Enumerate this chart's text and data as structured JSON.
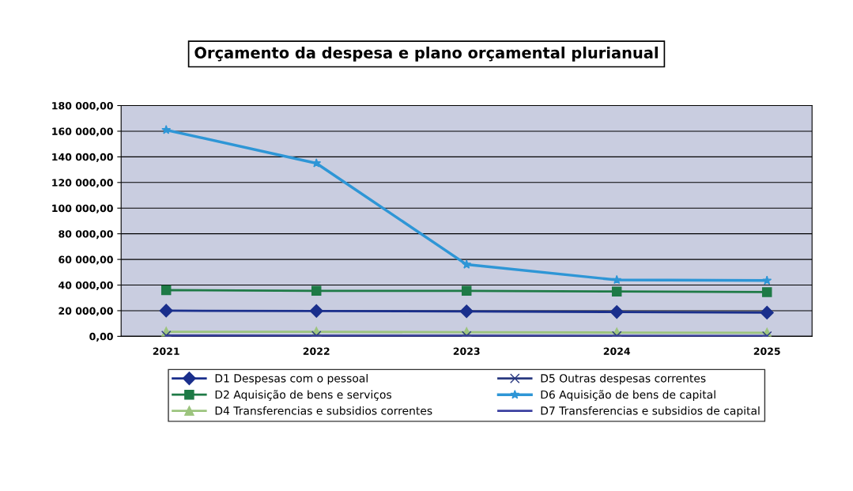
{
  "chart_data": {
    "type": "line",
    "title": "Orçamento da despesa e plano orçamental plurianual",
    "categories": [
      "2021",
      "2022",
      "2023",
      "2024",
      "2025"
    ],
    "series": [
      {
        "name": "D1 Despesas com o pessoal",
        "color": "#1a2f8c",
        "marker": "diamond",
        "values": [
          20000,
          19800,
          19500,
          19000,
          18500
        ]
      },
      {
        "name": "D2 Aquisição de bens e serviços",
        "color": "#1e7a46",
        "marker": "square",
        "values": [
          36000,
          35500,
          35500,
          35000,
          34500
        ]
      },
      {
        "name": "D4 Transferencias e subsidios correntes",
        "color": "#9cc47e",
        "marker": "triangle",
        "values": [
          3500,
          3500,
          3200,
          3000,
          2800
        ]
      },
      {
        "name": "D5 Outras despesas correntes",
        "color": "#2a3a80",
        "marker": "cross",
        "values": [
          600,
          500,
          400,
          300,
          200
        ]
      },
      {
        "name": "D6 Aquisição de bens de capital",
        "color": "#2e96d6",
        "marker": "star",
        "values": [
          161000,
          135000,
          56000,
          44000,
          43500
        ]
      },
      {
        "name": "D7 Transferencias e subsidios de capital",
        "color": "#3b3fa0",
        "marker": "none",
        "values": [
          100,
          100,
          100,
          100,
          100
        ]
      }
    ],
    "ylim": [
      0,
      180000
    ],
    "yticks": [
      {
        "value": 0,
        "label": "0,00"
      },
      {
        "value": 20000,
        "label": "20 000,00"
      },
      {
        "value": 40000,
        "label": "40 000,00"
      },
      {
        "value": 60000,
        "label": "60 000,00"
      },
      {
        "value": 80000,
        "label": "80 000,00"
      },
      {
        "value": 100000,
        "label": "100 000,00"
      },
      {
        "value": 120000,
        "label": "120 000,00"
      },
      {
        "value": 140000,
        "label": "140 000,00"
      },
      {
        "value": 160000,
        "label": "160 000,00"
      },
      {
        "value": 180000,
        "label": "180 000,00"
      }
    ],
    "grid": "y",
    "legend": "bottom"
  }
}
